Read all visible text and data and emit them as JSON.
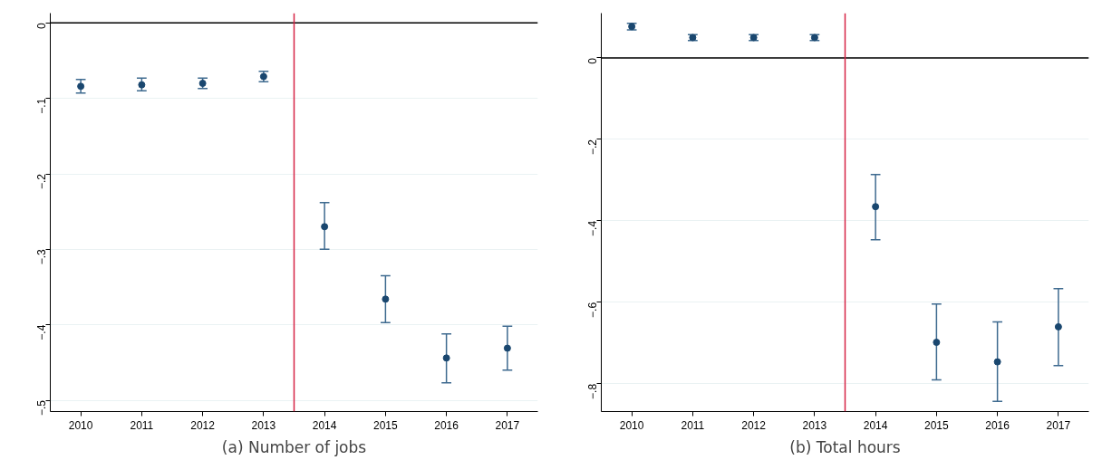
{
  "chart_data": [
    {
      "type": "scatter",
      "title": "(a) Number of jobs",
      "x": [
        2010,
        2011,
        2012,
        2013,
        2014,
        2015,
        2016,
        2017
      ],
      "series": [
        {
          "color": "#1a476f",
          "values": [
            -0.084,
            -0.082,
            -0.08,
            -0.071,
            -0.27,
            -0.366,
            -0.444,
            -0.431
          ],
          "errors": [
            [
              -0.093,
              -0.075
            ],
            [
              -0.09,
              -0.073
            ],
            [
              -0.087,
              -0.073
            ],
            [
              -0.078,
              -0.064
            ],
            [
              -0.3,
              -0.238
            ],
            [
              -0.397,
              -0.335
            ],
            [
              -0.477,
              -0.412
            ],
            [
              -0.46,
              -0.402
            ]
          ]
        }
      ],
      "marker": "circle",
      "xlim": [
        2009.5,
        2017.5
      ],
      "xticks": [
        2010,
        2011,
        2012,
        2013,
        2014,
        2015,
        2016,
        2017
      ],
      "ylim": [
        -0.515,
        0.013
      ],
      "yticks": [
        {
          "value": 0,
          "label": "0"
        },
        {
          "value": -0.1,
          "label": "−.1"
        },
        {
          "value": -0.2,
          "label": "−.2"
        },
        {
          "value": -0.3,
          "label": "−.3"
        },
        {
          "value": -0.4,
          "label": "−.4"
        },
        {
          "value": -0.5,
          "label": "−.5"
        }
      ],
      "grid": "y",
      "ref_lines": [
        {
          "axis": "y",
          "value": 0,
          "color": "#000000"
        },
        {
          "axis": "x",
          "value": 2013.5,
          "color": "#d62446"
        }
      ]
    },
    {
      "type": "scatter",
      "title": "(b) Total hours",
      "x": [
        2010,
        2011,
        2012,
        2013,
        2014,
        2015,
        2016,
        2017
      ],
      "series": [
        {
          "color": "#1a476f",
          "values": [
            0.077,
            0.05,
            0.05,
            0.05,
            -0.365,
            -0.698,
            -0.746,
            -0.66
          ],
          "errors": [
            [
              0.069,
              0.085
            ],
            [
              0.043,
              0.057
            ],
            [
              0.043,
              0.057
            ],
            [
              0.043,
              0.057
            ],
            [
              -0.446,
              -0.286
            ],
            [
              -0.79,
              -0.604
            ],
            [
              -0.843,
              -0.648
            ],
            [
              -0.755,
              -0.566
            ]
          ]
        }
      ],
      "marker": "circle",
      "xlim": [
        2009.5,
        2017.5
      ],
      "xticks": [
        2010,
        2011,
        2012,
        2013,
        2014,
        2015,
        2016,
        2017
      ],
      "ylim": [
        -0.868,
        0.11
      ],
      "yticks": [
        {
          "value": 0,
          "label": "0"
        },
        {
          "value": -0.2,
          "label": "−.2"
        },
        {
          "value": -0.4,
          "label": "−.4"
        },
        {
          "value": -0.6,
          "label": "−.6"
        },
        {
          "value": -0.8,
          "label": "−.8"
        }
      ],
      "grid": "y",
      "ref_lines": [
        {
          "axis": "y",
          "value": 0,
          "color": "#000000"
        },
        {
          "axis": "x",
          "value": 2013.5,
          "color": "#d62446"
        }
      ]
    }
  ]
}
